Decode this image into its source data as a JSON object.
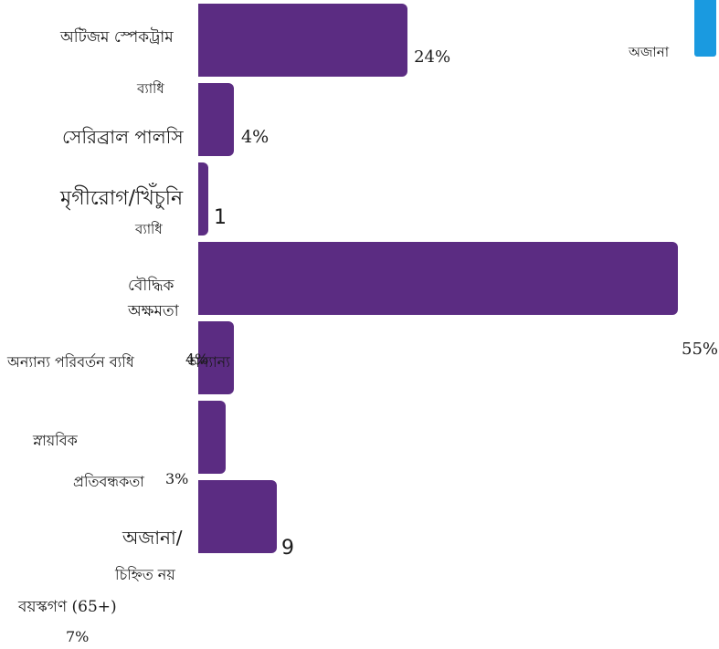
{
  "colors": {
    "bar": "#5b2c82",
    "legend_swatch": "#1a9ae0",
    "text": "#1a1a1a"
  },
  "legend": {
    "label": "অজানা"
  },
  "chart_data": {
    "type": "bar",
    "orientation": "horizontal",
    "title": "",
    "xlabel": "",
    "ylabel": "",
    "grid": false,
    "legend_position": "top-right",
    "categories": [
      "অটিজম স্পেকট্রাম ব্যাধি",
      "সেরিব্রাল পালসি",
      "মৃগীরোগ/খিঁচুনি ব্যাধি",
      "বৌদ্ধিক অক্ষমতা",
      "অন্যান্য পরিবর্তন ব্যধি",
      "স্নায়বিক প্রতিবন্ধকতা",
      "অজানা/ চিহ্নিত নয়"
    ],
    "series": [
      {
        "values": [
          24,
          4,
          1,
          55,
          4,
          3,
          9
        ]
      }
    ],
    "value_labels": [
      "24%",
      "4%",
      "1",
      "55%",
      "4%",
      "3%",
      "9"
    ],
    "annotations": [
      "অন্যান্য",
      "বয়স্কগণ (65+)",
      "7%"
    ]
  }
}
